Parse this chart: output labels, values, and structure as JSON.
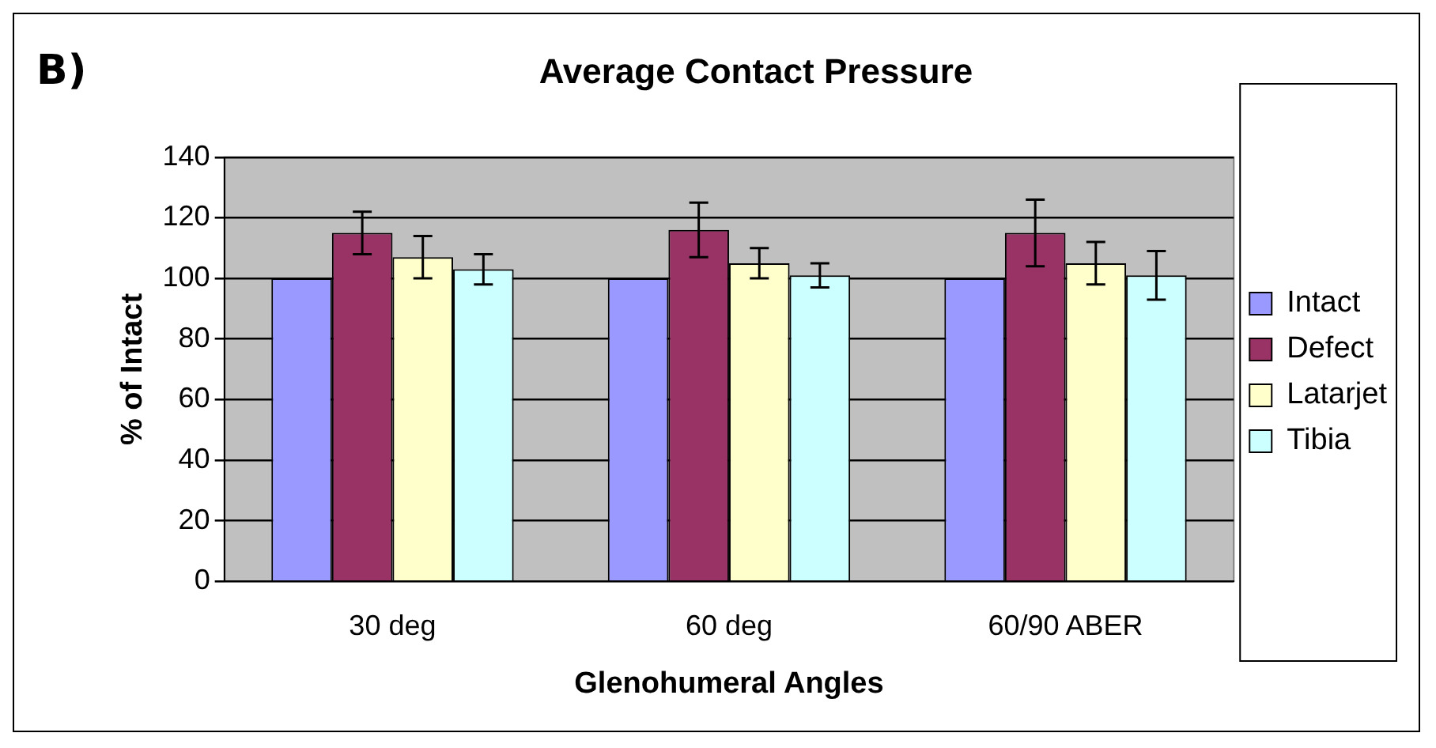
{
  "chart_data": {
    "type": "bar",
    "title": "Average Contact Pressure",
    "xlabel": "Glenohumeral Angles",
    "ylabel": "% of Intact",
    "annotations": [
      "B)"
    ],
    "categories": [
      "30 deg",
      "60 deg",
      "60/90 ABER"
    ],
    "series": [
      {
        "name": "Intact",
        "color": "#9999ff",
        "values": [
          100,
          100,
          100
        ]
      },
      {
        "name": "Defect",
        "color": "#993366",
        "values": [
          115,
          116,
          115
        ],
        "errors": [
          7,
          9,
          11
        ]
      },
      {
        "name": "Latarjet",
        "color": "#ffffcc",
        "values": [
          107,
          105,
          105
        ],
        "errors": [
          7,
          5,
          7
        ]
      },
      {
        "name": "Tibia",
        "color": "#ccffff",
        "values": [
          103,
          101,
          101
        ],
        "errors": [
          5,
          4,
          8
        ]
      }
    ],
    "ylim": [
      0,
      140
    ],
    "yticks": [
      0,
      20,
      40,
      60,
      80,
      100,
      120,
      140
    ],
    "grid": "y",
    "legend": "right"
  }
}
